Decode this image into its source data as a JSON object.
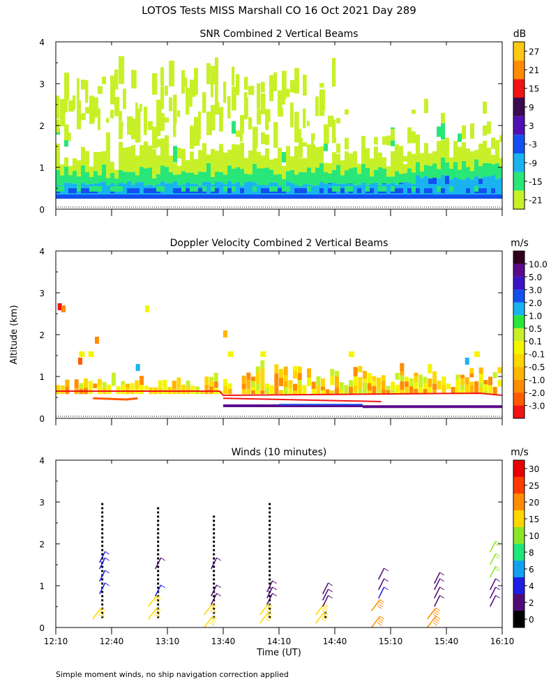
{
  "title": "LOTOS Tests MISS Marshall CO  16 Oct 2021 Day 289",
  "footnote": "Simple moment winds, no ship navigation correction applied",
  "y_axis_label": "Altitude (km)",
  "x_axis_label": "Time (UT)",
  "chart_data": [
    {
      "type": "heatmap",
      "title": "SNR Combined 2 Vertical Beams",
      "units": "dB",
      "xlabel": "Time (UT)",
      "ylabel": "Altitude (km)",
      "ylim": [
        0,
        4
      ],
      "yticks": [
        0,
        1,
        2,
        3,
        4
      ],
      "xlim": [
        730,
        970
      ],
      "colorbar": {
        "labels": [
          "-21",
          "-15",
          "-9",
          "-3",
          "3",
          "9",
          "15",
          "21",
          "27"
        ],
        "bands": [
          "#c8f028",
          "#28e678",
          "#19b4f0",
          "#1450f0",
          "#5010b4",
          "#3c0a50",
          "#f01414",
          "#ff8c00",
          "#ffc814"
        ]
      },
      "layers": [
        {
          "from_alt": 0.25,
          "to_alt": 0.35,
          "level": "-3"
        },
        {
          "from_alt": 0.35,
          "to_alt": 0.6,
          "level": "-9"
        },
        {
          "from_alt": 0.6,
          "to_alt": 0.85,
          "level": "-15"
        },
        {
          "from_alt": 0.85,
          "to_alt": 1.4,
          "level": "-21 (patchy)"
        },
        {
          "from_alt": 1.4,
          "to_alt": 3.3,
          "level": "-21 (sparse, first 2.5 h)"
        }
      ]
    },
    {
      "type": "heatmap",
      "title": "Doppler Velocity Combined 2 Vertical Beams",
      "units": "m/s",
      "xlabel": "Time (UT)",
      "ylabel": "Altitude (km)",
      "ylim": [
        0,
        4
      ],
      "yticks": [
        0,
        1,
        2,
        3,
        4
      ],
      "xlim": [
        730,
        970
      ],
      "colorbar": {
        "labels": [
          "-3.0",
          "-2.0",
          "-1.0",
          "-0.5",
          "-0.1",
          "0.1",
          "0.5",
          "1.0",
          "2.0",
          "3.0",
          "5.0",
          "10.0"
        ],
        "bands": [
          "#f01414",
          "#ff5a00",
          "#ff8c00",
          "#ffb400",
          "#ffd700",
          "#f5f500",
          "#c8f028",
          "#28e63c",
          "#19b4f0",
          "#1450f0",
          "#3c14c8",
          "#5a0a8c",
          "#32001e"
        ]
      },
      "regions": [
        {
          "from_alt": 0.55,
          "to_alt": 1.0,
          "level": "0.1 to -1.0 (mixed)"
        },
        {
          "from_alt": 0.3,
          "to_alt": 0.6,
          "level": "-2.0 to -3.0 (thin lines)"
        }
      ]
    },
    {
      "type": "barbs",
      "title": "Winds (10 minutes)",
      "units": "m/s",
      "xlabel": "Time (UT)",
      "ylabel": "Altitude (km)",
      "ylim": [
        0,
        4
      ],
      "yticks": [
        0,
        1,
        2,
        3,
        4
      ],
      "xlim": [
        730,
        970
      ],
      "xticks": [
        "12:10",
        "12:40",
        "13:10",
        "13:40",
        "14:10",
        "14:40",
        "15:10",
        "15:40",
        "16:10"
      ],
      "xtick_values": [
        730,
        760,
        790,
        820,
        850,
        880,
        910,
        940,
        970
      ],
      "colorbar": {
        "labels": [
          "0",
          "2",
          "4",
          "6",
          "8",
          "10",
          "15",
          "20",
          "25",
          "30"
        ],
        "bands": [
          "#000000",
          "#500a78",
          "#1e1ee6",
          "#14a0f0",
          "#1ee678",
          "#8ce628",
          "#ffd700",
          "#ff8c00",
          "#ff3c00",
          "#e60000"
        ]
      },
      "profiles": [
        {
          "time": 755,
          "barbs": [
            [
              0.3,
              18
            ],
            [
              0.9,
              5
            ],
            [
              1.2,
              5
            ],
            [
              1.5,
              5
            ],
            [
              1.65,
              5
            ]
          ],
          "dots_to": 3.0
        },
        {
          "time": 785,
          "barbs": [
            [
              0.3,
              18
            ],
            [
              0.6,
              15
            ],
            [
              0.85,
              5
            ],
            [
              1.5,
              3
            ]
          ],
          "dots_to": 2.9
        },
        {
          "time": 815,
          "barbs": [
            [
              0.1,
              18
            ],
            [
              0.4,
              18
            ],
            [
              0.65,
              3
            ],
            [
              0.85,
              3
            ],
            [
              1.5,
              2
            ]
          ],
          "dots_to": 2.7
        },
        {
          "time": 845,
          "barbs": [
            [
              0.2,
              18
            ],
            [
              0.4,
              18
            ],
            [
              0.65,
              3
            ],
            [
              0.8,
              3
            ],
            [
              0.95,
              3
            ]
          ],
          "dots_to": 3.0
        },
        {
          "time": 875,
          "barbs": [
            [
              0.2,
              18
            ],
            [
              0.4,
              18
            ],
            [
              0.6,
              3
            ],
            [
              0.75,
              3
            ],
            [
              0.9,
              3
            ]
          ],
          "dots_to": 0.35
        },
        {
          "time": 905,
          "barbs": [
            [
              0.1,
              20
            ],
            [
              0.5,
              20
            ],
            [
              0.8,
              4
            ],
            [
              1.0,
              3
            ],
            [
              1.25,
              3
            ]
          ],
          "dots_to": null
        },
        {
          "time": 935,
          "barbs": [
            [
              0.1,
              20
            ],
            [
              0.3,
              20
            ],
            [
              0.6,
              3
            ],
            [
              0.8,
              3
            ],
            [
              1.0,
              3
            ],
            [
              1.15,
              3
            ]
          ],
          "dots_to": null
        },
        {
          "time": 965,
          "barbs": [
            [
              0.6,
              3
            ],
            [
              0.8,
              3
            ],
            [
              1.0,
              3
            ],
            [
              1.3,
              12
            ],
            [
              1.6,
              12
            ],
            [
              1.9,
              12
            ]
          ],
          "dots_to": null
        }
      ]
    }
  ]
}
